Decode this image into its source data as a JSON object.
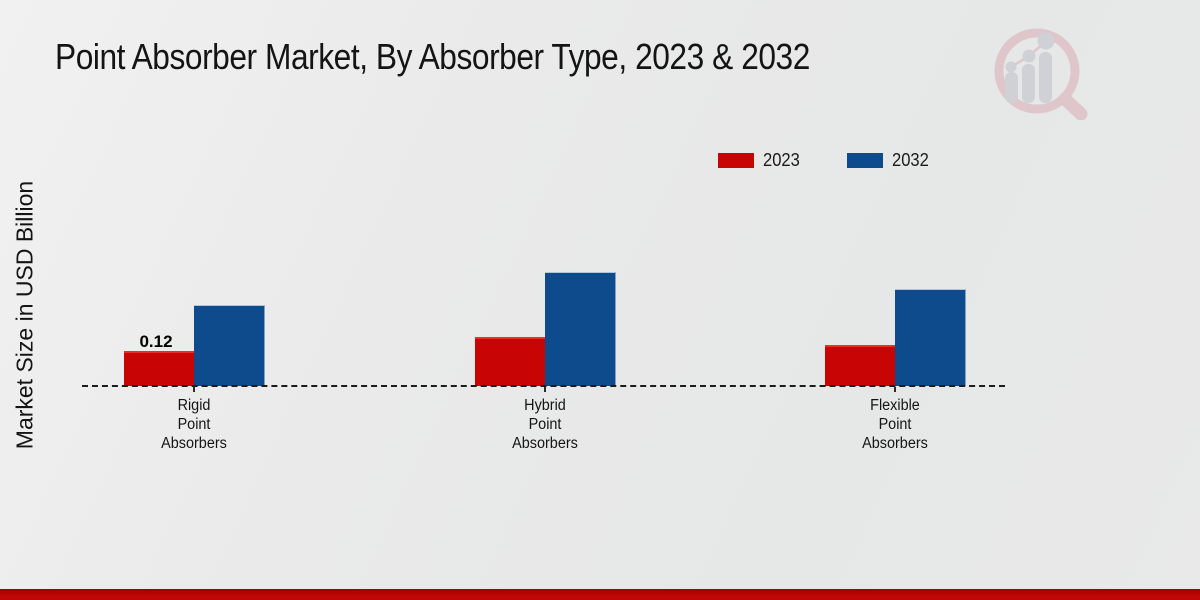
{
  "page": {
    "title": "Point Absorber Market, By Absorber Type, 2023 & 2032"
  },
  "chart_data": {
    "type": "bar",
    "title": "Point Absorber Market, By Absorber Type, 2023 & 2032",
    "xlabel": "",
    "ylabel": "Market Size in USD Billion",
    "categories": [
      "Rigid Point Absorbers",
      "Hybrid Point Absorbers",
      "Flexible Point Absorbers"
    ],
    "categories_lines": [
      [
        "Rigid",
        "Point",
        "Absorbers"
      ],
      [
        "Hybrid",
        "Point",
        "Absorbers"
      ],
      [
        "Flexible",
        "Point",
        "Absorbers"
      ]
    ],
    "series": [
      {
        "name": "2023",
        "color": "#c90404",
        "values": [
          0.12,
          0.17,
          0.14
        ]
      },
      {
        "name": "2032",
        "color": "#0e4b8c",
        "values": [
          0.29,
          0.41,
          0.35
        ]
      }
    ],
    "data_labels": [
      {
        "series": "2023",
        "category": "Rigid Point Absorbers",
        "text": "0.12"
      }
    ],
    "ylim": [
      0,
      0.45
    ],
    "grid": false,
    "baseline_style": "dashed",
    "legend_position": "top-right"
  },
  "branding": {
    "logo_icon": "magnifier-bar-chart-watermark",
    "accent_red": "#c40606",
    "logo_pink": "#d9a7ae",
    "logo_gray": "#c7c9d0"
  }
}
